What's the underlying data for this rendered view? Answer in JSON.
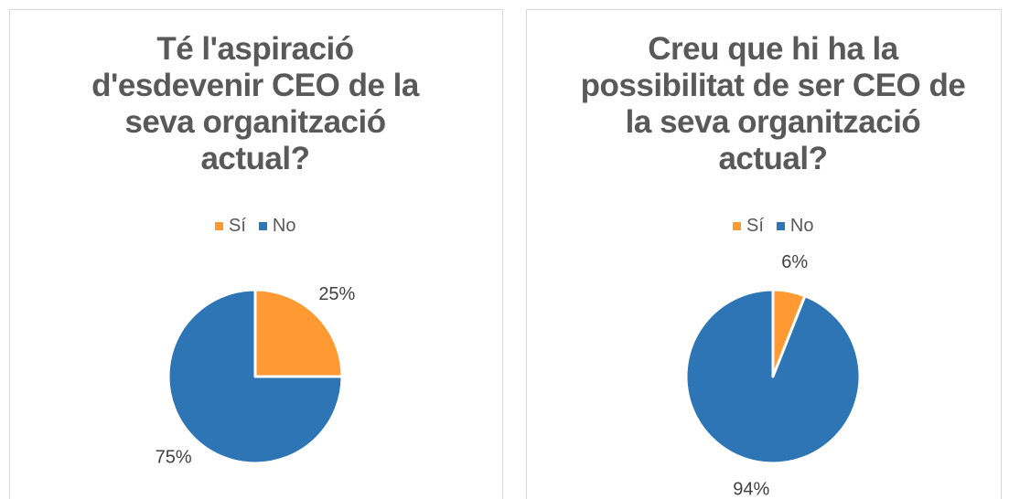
{
  "chart_data": [
    {
      "type": "pie",
      "title": "Té l'aspiració d'esdevenir CEO de la seva organització actual?",
      "categories": [
        "Sí",
        "No"
      ],
      "values": [
        25,
        75
      ],
      "value_labels": [
        "25%",
        "75%"
      ],
      "colors": [
        "#ff9a33",
        "#2e75b6"
      ],
      "legend": "top"
    },
    {
      "type": "pie",
      "title": "Creu que hi ha la possibilitat de ser CEO de la seva organització actual?",
      "categories": [
        "Sí",
        "No"
      ],
      "values": [
        6,
        94
      ],
      "value_labels": [
        "6%",
        "94%"
      ],
      "colors": [
        "#ff9a33",
        "#2e75b6"
      ],
      "legend": "top"
    }
  ]
}
